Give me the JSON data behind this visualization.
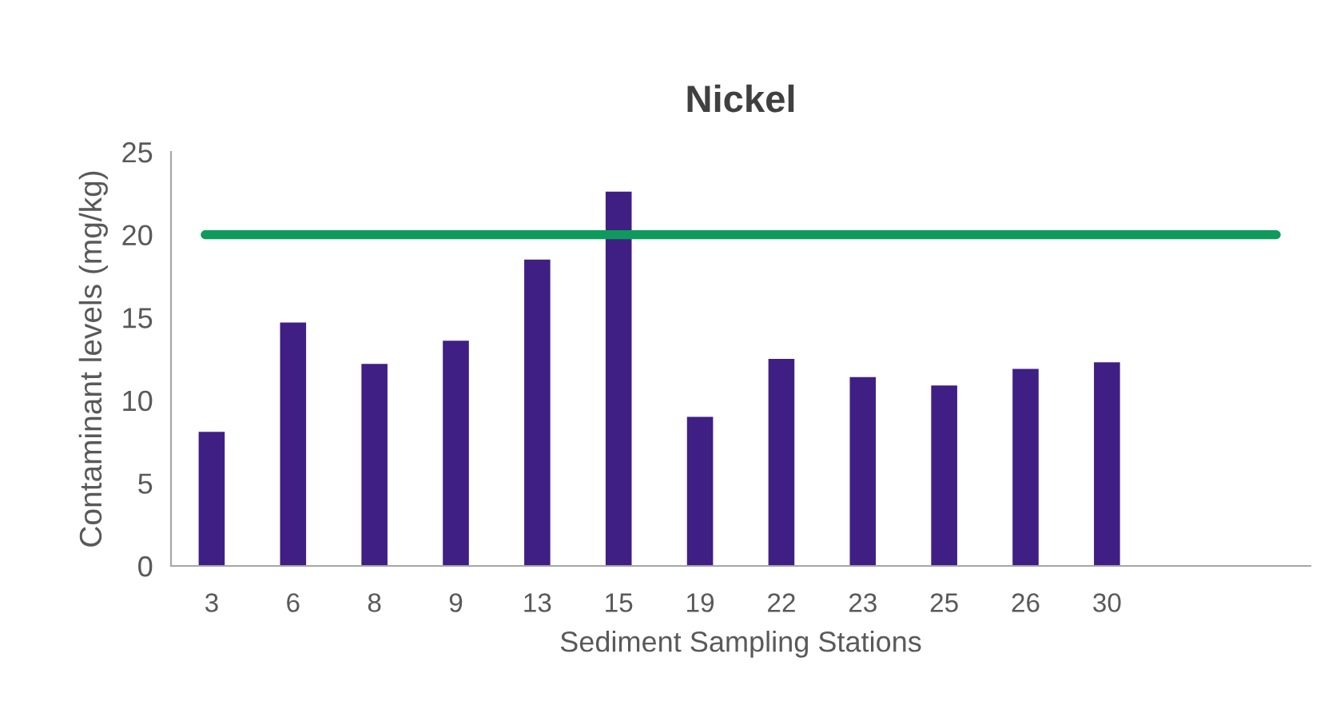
{
  "chart_data": {
    "type": "bar",
    "title": "Nickel",
    "xlabel": "Sediment Sampling Stations",
    "ylabel": "Contaminant levels (mg/kg)",
    "categories": [
      "3",
      "6",
      "8",
      "9",
      "13",
      "15",
      "19",
      "22",
      "23",
      "25",
      "26",
      "30",
      null,
      null
    ],
    "values": [
      8.1,
      14.7,
      12.2,
      13.6,
      18.5,
      22.6,
      9.0,
      12.5,
      11.4,
      10.9,
      11.9,
      12.3,
      null,
      null
    ],
    "color": "#3f1f84",
    "ylim": [
      0,
      25
    ],
    "yticks": [
      0,
      5,
      10,
      15,
      20,
      25
    ],
    "ref_lines": [
      {
        "axis": "y",
        "value": 20,
        "color": "#0e9a5c"
      }
    ],
    "grid": false
  }
}
